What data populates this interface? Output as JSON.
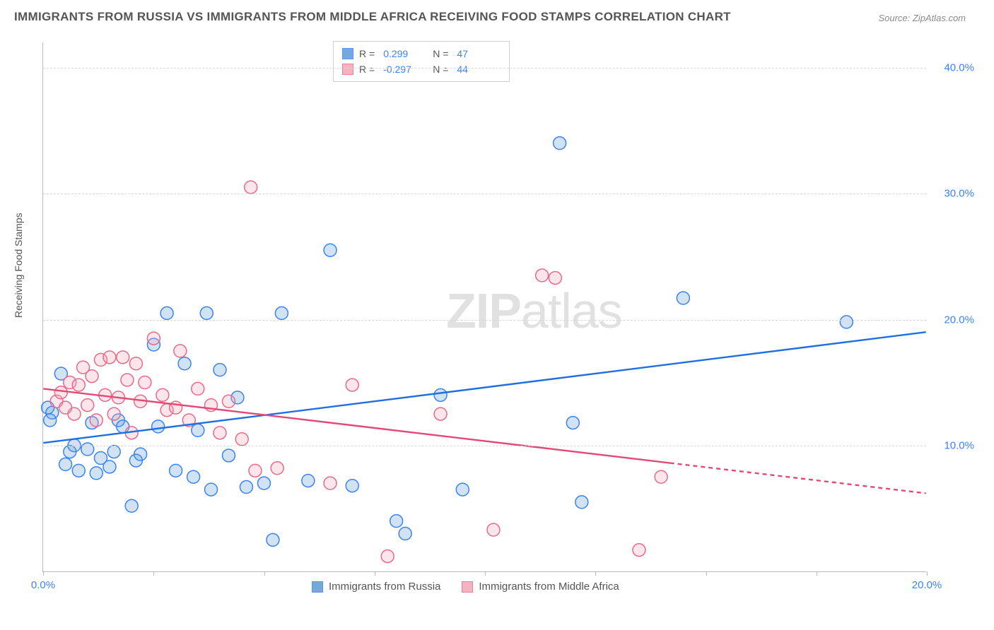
{
  "title": "IMMIGRANTS FROM RUSSIA VS IMMIGRANTS FROM MIDDLE AFRICA RECEIVING FOOD STAMPS CORRELATION CHART",
  "source": "Source: ZipAtlas.com",
  "ylabel": "Receiving Food Stamps",
  "watermark_a": "ZIP",
  "watermark_b": "atlas",
  "chart": {
    "type": "scatter",
    "background_color": "#ffffff",
    "grid_color": "#d8d8d8",
    "axis_color": "#b8b8b8",
    "tick_label_color": "#3b82f6",
    "xlim": [
      0,
      20
    ],
    "ylim": [
      0,
      42
    ],
    "x_ticks": [
      0,
      2.5,
      5,
      7.5,
      10,
      12.5,
      15,
      17.5,
      20
    ],
    "x_tick_labels": {
      "0": "0.0%",
      "20": "20.0%"
    },
    "y_ticks": [
      10,
      20,
      30,
      40
    ],
    "y_tick_labels": {
      "10": "10.0%",
      "20": "20.0%",
      "30": "30.0%",
      "40": "40.0%"
    },
    "marker_radius": 9,
    "marker_stroke_width": 1.5,
    "marker_fill_opacity": 0.28,
    "trend_line_width": 2.4,
    "series": [
      {
        "name": "Immigrants from Russia",
        "color": "#5b9bd5",
        "stroke": "#3b82f6",
        "trend_color": "#1f6fe0",
        "R": "0.299",
        "N": "47",
        "trend": {
          "x1": 0,
          "y1": 10.2,
          "x2": 20,
          "y2": 19.0,
          "dashed_from_x": null
        },
        "points": [
          [
            0.1,
            13.0
          ],
          [
            0.2,
            12.6
          ],
          [
            0.15,
            12.0
          ],
          [
            0.4,
            15.7
          ],
          [
            0.5,
            8.5
          ],
          [
            0.6,
            9.5
          ],
          [
            0.7,
            10.0
          ],
          [
            0.8,
            8.0
          ],
          [
            1.0,
            9.7
          ],
          [
            1.1,
            11.8
          ],
          [
            1.2,
            7.8
          ],
          [
            1.3,
            9.0
          ],
          [
            1.5,
            8.3
          ],
          [
            1.6,
            9.5
          ],
          [
            1.7,
            12.0
          ],
          [
            1.8,
            11.5
          ],
          [
            2.0,
            5.2
          ],
          [
            2.1,
            8.8
          ],
          [
            2.2,
            9.3
          ],
          [
            2.5,
            18.0
          ],
          [
            2.6,
            11.5
          ],
          [
            2.8,
            20.5
          ],
          [
            3.0,
            8.0
          ],
          [
            3.2,
            16.5
          ],
          [
            3.4,
            7.5
          ],
          [
            3.5,
            11.2
          ],
          [
            3.7,
            20.5
          ],
          [
            3.8,
            6.5
          ],
          [
            4.0,
            16.0
          ],
          [
            4.2,
            9.2
          ],
          [
            4.4,
            13.8
          ],
          [
            4.6,
            6.7
          ],
          [
            5.0,
            7.0
          ],
          [
            5.2,
            2.5
          ],
          [
            5.4,
            20.5
          ],
          [
            6.0,
            7.2
          ],
          [
            6.5,
            25.5
          ],
          [
            7.0,
            6.8
          ],
          [
            8.0,
            4.0
          ],
          [
            8.2,
            3.0
          ],
          [
            9.0,
            14.0
          ],
          [
            9.5,
            6.5
          ],
          [
            11.7,
            34.0
          ],
          [
            12.0,
            11.8
          ],
          [
            12.2,
            5.5
          ],
          [
            14.5,
            21.7
          ],
          [
            18.2,
            19.8
          ]
        ]
      },
      {
        "name": "Immigrants from Middle Africa",
        "color": "#f4a6b7",
        "stroke": "#e86a8a",
        "trend_color": "#e24a75",
        "R": "-0.297",
        "N": "44",
        "trend": {
          "x1": 0,
          "y1": 14.5,
          "x2": 20,
          "y2": 6.2,
          "dashed_from_x": 14.2
        },
        "points": [
          [
            0.3,
            13.5
          ],
          [
            0.4,
            14.2
          ],
          [
            0.5,
            13.0
          ],
          [
            0.6,
            15.0
          ],
          [
            0.7,
            12.5
          ],
          [
            0.8,
            14.8
          ],
          [
            0.9,
            16.2
          ],
          [
            1.0,
            13.2
          ],
          [
            1.1,
            15.5
          ],
          [
            1.2,
            12.0
          ],
          [
            1.3,
            16.8
          ],
          [
            1.4,
            14.0
          ],
          [
            1.5,
            17.0
          ],
          [
            1.6,
            12.5
          ],
          [
            1.7,
            13.8
          ],
          [
            1.8,
            17.0
          ],
          [
            1.9,
            15.2
          ],
          [
            2.0,
            11.0
          ],
          [
            2.1,
            16.5
          ],
          [
            2.2,
            13.5
          ],
          [
            2.3,
            15.0
          ],
          [
            2.5,
            18.5
          ],
          [
            2.7,
            14.0
          ],
          [
            2.8,
            12.8
          ],
          [
            3.0,
            13.0
          ],
          [
            3.1,
            17.5
          ],
          [
            3.3,
            12.0
          ],
          [
            3.5,
            14.5
          ],
          [
            3.8,
            13.2
          ],
          [
            4.0,
            11.0
          ],
          [
            4.2,
            13.5
          ],
          [
            4.5,
            10.5
          ],
          [
            4.7,
            30.5
          ],
          [
            4.8,
            8.0
          ],
          [
            5.3,
            8.2
          ],
          [
            6.5,
            7.0
          ],
          [
            7.0,
            14.8
          ],
          [
            7.8,
            1.2
          ],
          [
            9.0,
            12.5
          ],
          [
            10.2,
            3.3
          ],
          [
            11.3,
            23.5
          ],
          [
            11.6,
            23.3
          ],
          [
            13.5,
            1.7
          ],
          [
            14.0,
            7.5
          ]
        ]
      }
    ]
  },
  "legend": {
    "series1_label": "Immigrants from Russia",
    "series2_label": "Immigrants from Middle Africa",
    "R_label": "R =",
    "N_label": "N ="
  }
}
